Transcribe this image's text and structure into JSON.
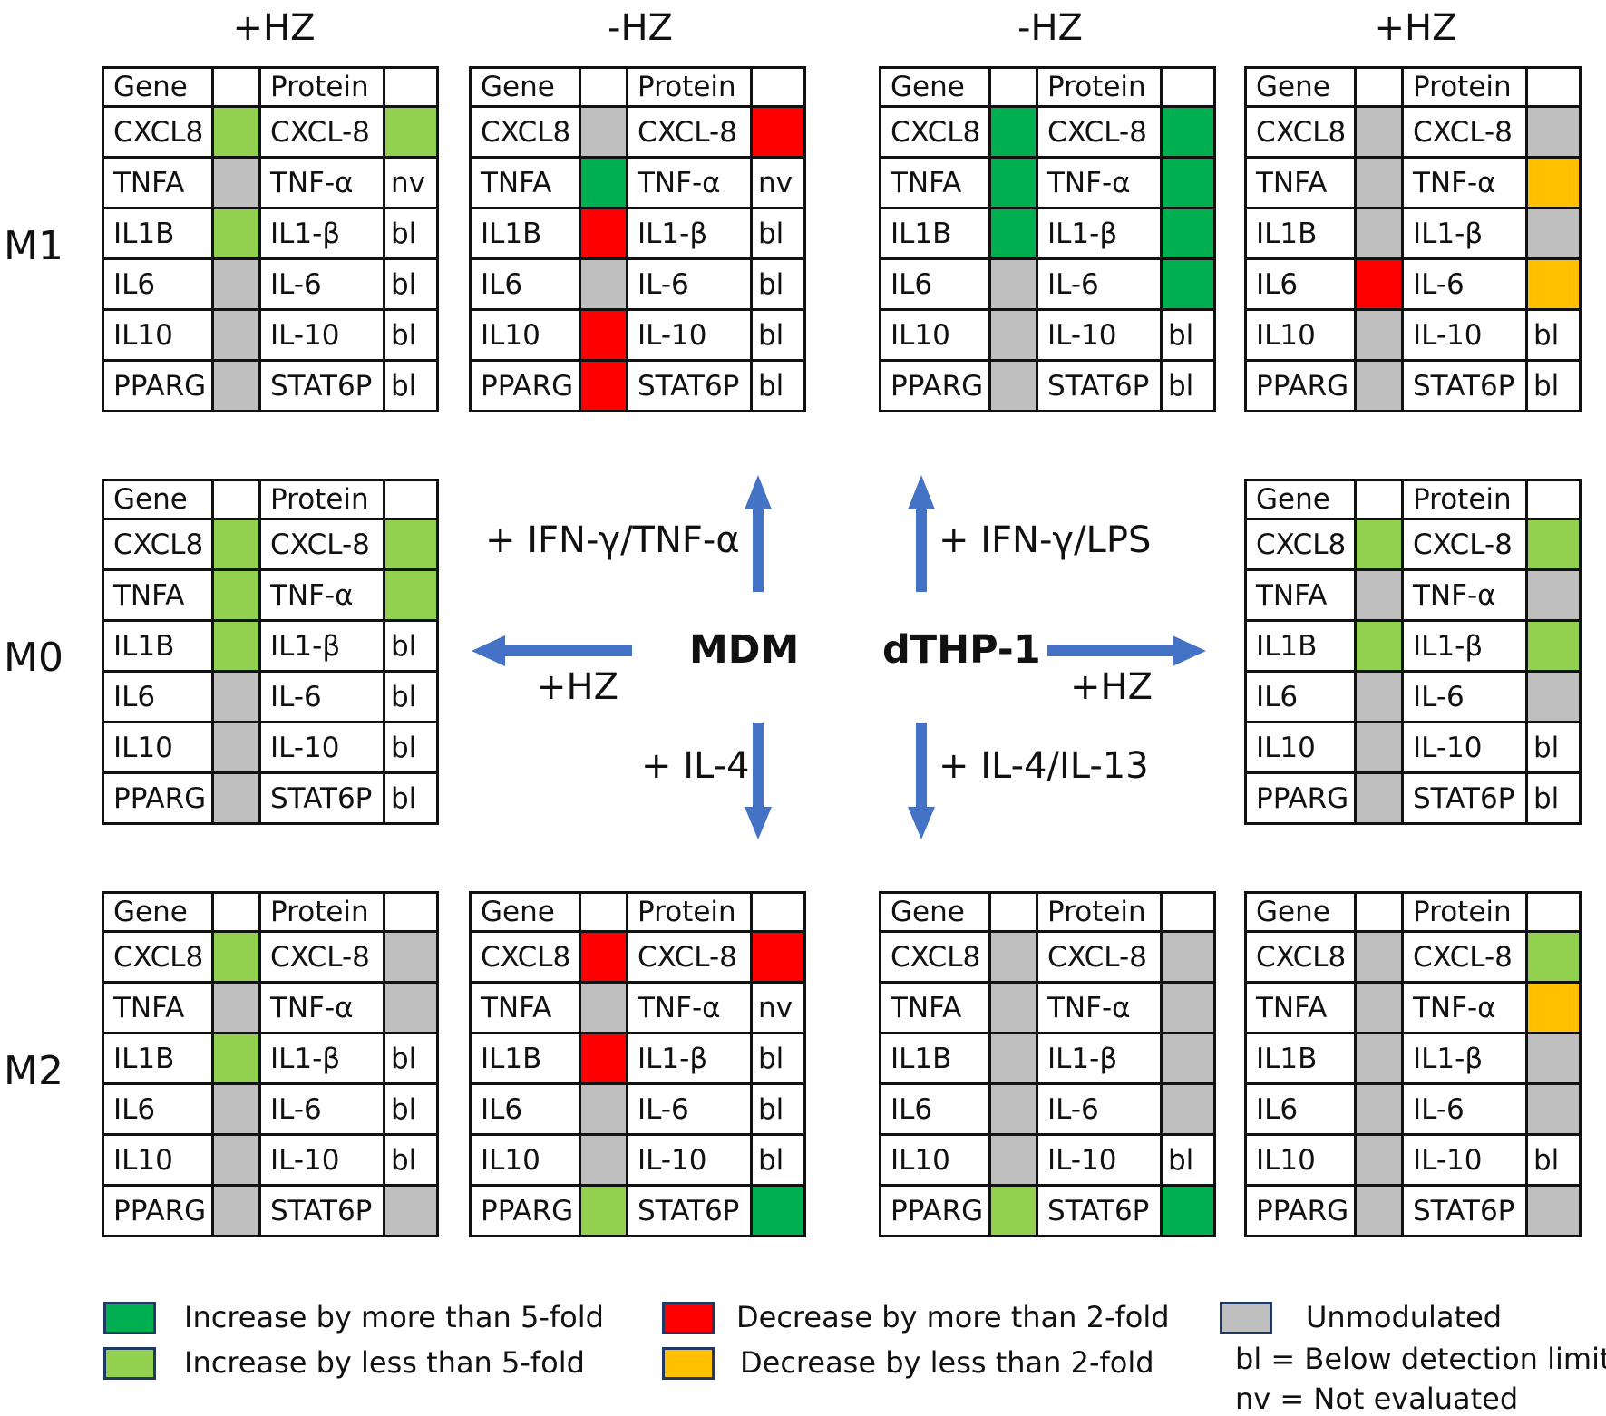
{
  "colors": {
    "dark_green": "#00b050",
    "light_green": "#92d050",
    "red": "#ff0000",
    "orange": "#ffc000",
    "grey": "#bfbfbf",
    "white": "#ffffff",
    "arrow": "#4472c4"
  },
  "column_headers": {
    "mdm_hz": "+HZ",
    "mdm_nohz": "-HZ",
    "thp_nohz": "-HZ",
    "thp_hz": "+HZ"
  },
  "row_labels": {
    "m1": "M1",
    "m0": "M0",
    "m2": "M2"
  },
  "table_header": {
    "gene": "Gene",
    "protein": "Protein"
  },
  "tables": {
    "m1_mdm_hz": {
      "rows": [
        {
          "gene": "CXCL8",
          "gc": "light_green",
          "protein": "CXCL-8",
          "pc": "light_green",
          "pt": ""
        },
        {
          "gene": "TNFA",
          "gc": "grey",
          "protein": "TNF-α",
          "pc": "white",
          "pt": "nv"
        },
        {
          "gene": "IL1B",
          "gc": "light_green",
          "protein": "IL1-β",
          "pc": "white",
          "pt": "bl"
        },
        {
          "gene": "IL6",
          "gc": "grey",
          "protein": "IL-6",
          "pc": "white",
          "pt": "bl"
        },
        {
          "gene": "IL10",
          "gc": "grey",
          "protein": "IL-10",
          "pc": "white",
          "pt": "bl"
        },
        {
          "gene": "PPARG",
          "gc": "grey",
          "protein": "STAT6P",
          "pc": "white",
          "pt": "bl"
        }
      ]
    },
    "m1_mdm_nohz": {
      "rows": [
        {
          "gene": "CXCL8",
          "gc": "grey",
          "protein": "CXCL-8",
          "pc": "red",
          "pt": ""
        },
        {
          "gene": "TNFA",
          "gc": "dark_green",
          "protein": "TNF-α",
          "pc": "white",
          "pt": "nv"
        },
        {
          "gene": "IL1B",
          "gc": "red",
          "protein": "IL1-β",
          "pc": "white",
          "pt": "bl"
        },
        {
          "gene": "IL6",
          "gc": "grey",
          "protein": "IL-6",
          "pc": "white",
          "pt": "bl"
        },
        {
          "gene": "IL10",
          "gc": "red",
          "protein": "IL-10",
          "pc": "white",
          "pt": "bl"
        },
        {
          "gene": "PPARG",
          "gc": "red",
          "protein": "STAT6P",
          "pc": "white",
          "pt": "bl"
        }
      ]
    },
    "m1_thp_nohz": {
      "rows": [
        {
          "gene": "CXCL8",
          "gc": "dark_green",
          "protein": "CXCL-8",
          "pc": "dark_green",
          "pt": ""
        },
        {
          "gene": "TNFA",
          "gc": "dark_green",
          "protein": "TNF-α",
          "pc": "dark_green",
          "pt": ""
        },
        {
          "gene": "IL1B",
          "gc": "dark_green",
          "protein": "IL1-β",
          "pc": "dark_green",
          "pt": ""
        },
        {
          "gene": "IL6",
          "gc": "grey",
          "protein": "IL-6",
          "pc": "dark_green",
          "pt": ""
        },
        {
          "gene": "IL10",
          "gc": "grey",
          "protein": "IL-10",
          "pc": "white",
          "pt": "bl"
        },
        {
          "gene": "PPARG",
          "gc": "grey",
          "protein": "STAT6P",
          "pc": "white",
          "pt": "bl"
        }
      ]
    },
    "m1_thp_hz": {
      "rows": [
        {
          "gene": "CXCL8",
          "gc": "grey",
          "protein": "CXCL-8",
          "pc": "grey",
          "pt": ""
        },
        {
          "gene": "TNFA",
          "gc": "grey",
          "protein": "TNF-α",
          "pc": "orange",
          "pt": ""
        },
        {
          "gene": "IL1B",
          "gc": "grey",
          "protein": "IL1-β",
          "pc": "grey",
          "pt": ""
        },
        {
          "gene": "IL6",
          "gc": "red",
          "protein": "IL-6",
          "pc": "orange",
          "pt": ""
        },
        {
          "gene": "IL10",
          "gc": "grey",
          "protein": "IL-10",
          "pc": "white",
          "pt": "bl"
        },
        {
          "gene": "PPARG",
          "gc": "grey",
          "protein": "STAT6P",
          "pc": "white",
          "pt": "bl"
        }
      ]
    },
    "m0_mdm_hz": {
      "rows": [
        {
          "gene": "CXCL8",
          "gc": "light_green",
          "protein": "CXCL-8",
          "pc": "light_green",
          "pt": ""
        },
        {
          "gene": "TNFA",
          "gc": "light_green",
          "protein": "TNF-α",
          "pc": "light_green",
          "pt": ""
        },
        {
          "gene": "IL1B",
          "gc": "light_green",
          "protein": "IL1-β",
          "pc": "white",
          "pt": "bl"
        },
        {
          "gene": "IL6",
          "gc": "grey",
          "protein": "IL-6",
          "pc": "white",
          "pt": "bl"
        },
        {
          "gene": "IL10",
          "gc": "grey",
          "protein": "IL-10",
          "pc": "white",
          "pt": "bl"
        },
        {
          "gene": "PPARG",
          "gc": "grey",
          "protein": "STAT6P",
          "pc": "white",
          "pt": "bl"
        }
      ]
    },
    "m0_thp_hz": {
      "rows": [
        {
          "gene": "CXCL8",
          "gc": "light_green",
          "protein": "CXCL-8",
          "pc": "light_green",
          "pt": ""
        },
        {
          "gene": "TNFA",
          "gc": "grey",
          "protein": "TNF-α",
          "pc": "grey",
          "pt": ""
        },
        {
          "gene": "IL1B",
          "gc": "light_green",
          "protein": "IL1-β",
          "pc": "light_green",
          "pt": ""
        },
        {
          "gene": "IL6",
          "gc": "grey",
          "protein": "IL-6",
          "pc": "grey",
          "pt": ""
        },
        {
          "gene": "IL10",
          "gc": "grey",
          "protein": "IL-10",
          "pc": "white",
          "pt": "bl"
        },
        {
          "gene": "PPARG",
          "gc": "grey",
          "protein": "STAT6P",
          "pc": "white",
          "pt": "bl"
        }
      ]
    },
    "m2_mdm_hz": {
      "rows": [
        {
          "gene": "CXCL8",
          "gc": "light_green",
          "protein": "CXCL-8",
          "pc": "grey",
          "pt": ""
        },
        {
          "gene": "TNFA",
          "gc": "grey",
          "protein": "TNF-α",
          "pc": "grey",
          "pt": ""
        },
        {
          "gene": "IL1B",
          "gc": "light_green",
          "protein": "IL1-β",
          "pc": "white",
          "pt": "bl"
        },
        {
          "gene": "IL6",
          "gc": "grey",
          "protein": "IL-6",
          "pc": "white",
          "pt": "bl"
        },
        {
          "gene": "IL10",
          "gc": "grey",
          "protein": "IL-10",
          "pc": "white",
          "pt": "bl"
        },
        {
          "gene": "PPARG",
          "gc": "grey",
          "protein": "STAT6P",
          "pc": "grey",
          "pt": ""
        }
      ]
    },
    "m2_mdm_nohz": {
      "rows": [
        {
          "gene": "CXCL8",
          "gc": "red",
          "protein": "CXCL-8",
          "pc": "red",
          "pt": ""
        },
        {
          "gene": "TNFA",
          "gc": "grey",
          "protein": "TNF-α",
          "pc": "white",
          "pt": "nv"
        },
        {
          "gene": "IL1B",
          "gc": "red",
          "protein": "IL1-β",
          "pc": "white",
          "pt": "bl"
        },
        {
          "gene": "IL6",
          "gc": "grey",
          "protein": "IL-6",
          "pc": "white",
          "pt": "bl"
        },
        {
          "gene": "IL10",
          "gc": "grey",
          "protein": "IL-10",
          "pc": "white",
          "pt": "bl"
        },
        {
          "gene": "PPARG",
          "gc": "light_green",
          "protein": "STAT6P",
          "pc": "dark_green",
          "pt": ""
        }
      ]
    },
    "m2_thp_nohz": {
      "rows": [
        {
          "gene": "CXCL8",
          "gc": "grey",
          "protein": "CXCL-8",
          "pc": "grey",
          "pt": ""
        },
        {
          "gene": "TNFA",
          "gc": "grey",
          "protein": "TNF-α",
          "pc": "grey",
          "pt": ""
        },
        {
          "gene": "IL1B",
          "gc": "grey",
          "protein": "IL1-β",
          "pc": "grey",
          "pt": ""
        },
        {
          "gene": "IL6",
          "gc": "grey",
          "protein": "IL-6",
          "pc": "grey",
          "pt": ""
        },
        {
          "gene": "IL10",
          "gc": "grey",
          "protein": "IL-10",
          "pc": "white",
          "pt": "bl"
        },
        {
          "gene": "PPARG",
          "gc": "light_green",
          "protein": "STAT6P",
          "pc": "dark_green",
          "pt": ""
        }
      ]
    },
    "m2_thp_hz": {
      "rows": [
        {
          "gene": "CXCL8",
          "gc": "grey",
          "protein": "CXCL-8",
          "pc": "light_green",
          "pt": ""
        },
        {
          "gene": "TNFA",
          "gc": "grey",
          "protein": "TNF-α",
          "pc": "orange",
          "pt": ""
        },
        {
          "gene": "IL1B",
          "gc": "grey",
          "protein": "IL1-β",
          "pc": "grey",
          "pt": ""
        },
        {
          "gene": "IL6",
          "gc": "grey",
          "protein": "IL-6",
          "pc": "grey",
          "pt": ""
        },
        {
          "gene": "IL10",
          "gc": "grey",
          "protein": "IL-10",
          "pc": "white",
          "pt": "bl"
        },
        {
          "gene": "PPARG",
          "gc": "grey",
          "protein": "STAT6P",
          "pc": "grey",
          "pt": ""
        }
      ]
    }
  },
  "center": {
    "mdm": "MDM",
    "thp": "dTHP-1",
    "mdm_up": "+ IFN-γ/TNF-α",
    "mdm_down": "+ IL-4",
    "mdm_left": "+HZ",
    "thp_up": "+ IFN-γ/LPS",
    "thp_down": "+ IL-4/IL-13",
    "thp_right": "+HZ"
  },
  "legend": {
    "inc_more": "Increase by more than 5-fold",
    "inc_less": "Increase by less than 5-fold",
    "dec_more": "Decrease by more than 2-fold",
    "dec_less": "Decrease by less than 2-fold",
    "unmod": "Unmodulated",
    "bl": "bl = Below detection limit",
    "nv": "nv = Not evaluated"
  }
}
